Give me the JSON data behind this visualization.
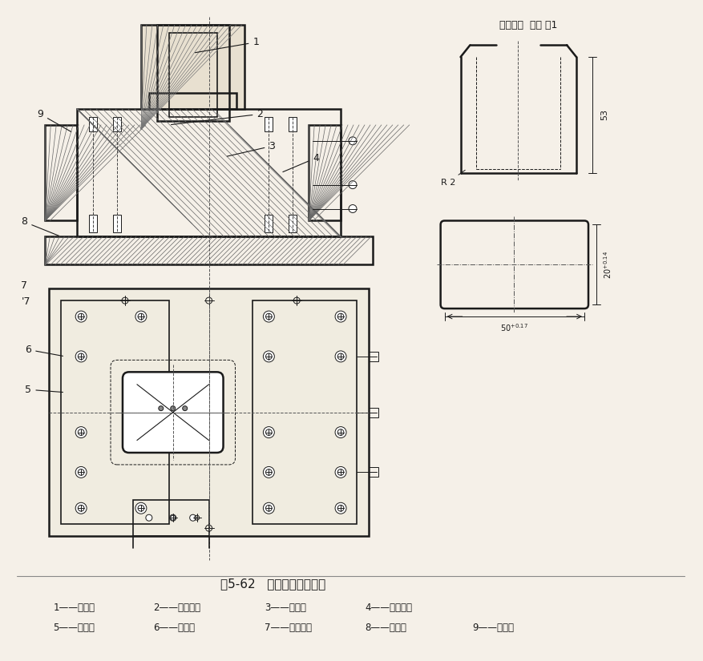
{
  "title": "图5-62   移动式凹模拉伸模",
  "material_label": "制件材料  黄铜 厚1",
  "legend_items": [
    "1——凸模；",
    "2——定位板；",
    "3——托板；",
    "4——固定板；",
    "5——接套；",
    "6——手把；",
    "7——刮料板；",
    "8——导板；",
    "9——凹模。"
  ],
  "dim_53": "53",
  "dim_R2": "R 2",
  "dim_20": "20⁺⁰·¹⁴",
  "dim_50": "50⁺⁰·¹⁷",
  "bg_color": "#f5f0e8",
  "line_color": "#1a1a1a",
  "hatch_color": "#555555"
}
